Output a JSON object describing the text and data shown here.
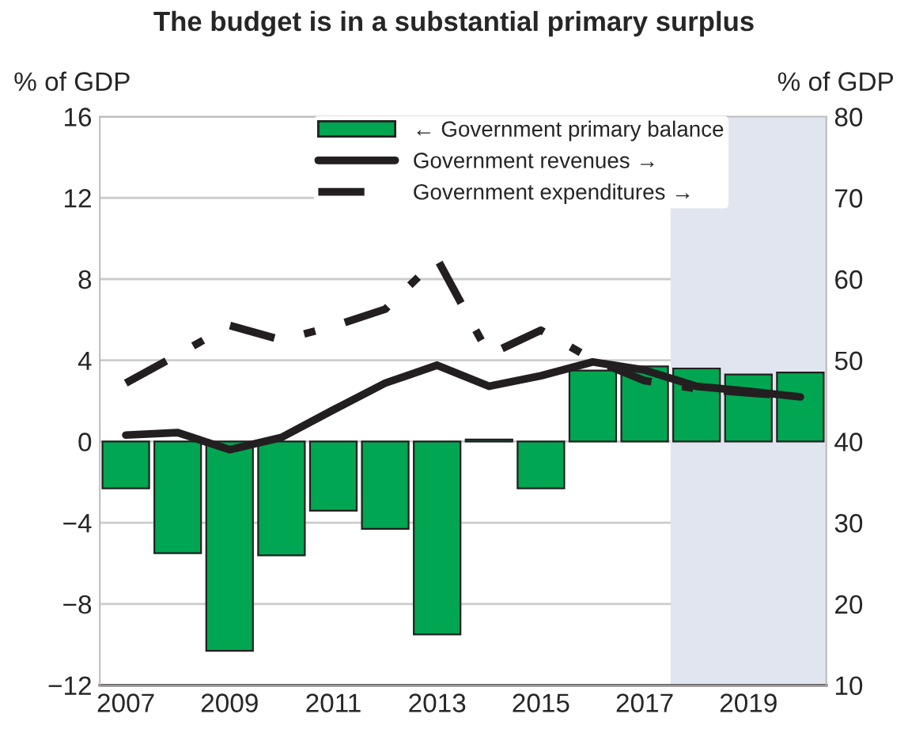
{
  "chart_data": {
    "type": "bar",
    "title": "The budget is in a substantial primary surplus",
    "ylabel": "% of GDP",
    "y2label": "% of GDP",
    "x": [
      2007,
      2008,
      2009,
      2010,
      2011,
      2012,
      2013,
      2014,
      2015,
      2016,
      2017,
      2018,
      2019,
      2020
    ],
    "series": [
      {
        "name": "← Government primary balance",
        "color": "#00a651",
        "values": [
          -2.3,
          -5.5,
          -10.3,
          -5.6,
          -3.4,
          -4.3,
          -9.5,
          0.1,
          -2.3,
          3.5,
          3.7,
          3.6,
          3.3,
          3.4
        ]
      },
      {
        "name": "Government revenues →",
        "color": "#231f20",
        "type": "line",
        "axis": "y2",
        "line_style": "solid",
        "values": [
          40.8,
          41.1,
          39.0,
          40.5,
          43.9,
          47.2,
          49.4,
          46.8,
          48.1,
          49.8,
          48.8,
          46.8,
          46.2,
          45.5
        ]
      },
      {
        "name": "Government expenditures →",
        "color": "#231f20",
        "type": "line",
        "axis": "y2",
        "line_style": "dashdot",
        "values": [
          47.2,
          50.7,
          54.3,
          52.5,
          54.2,
          56.3,
          62.5,
          50.7,
          53.7,
          50.1,
          47.5,
          46.5,
          46.0,
          45.5
        ]
      }
    ],
    "xlim": [
      2006.5,
      2020.5
    ],
    "xticks": [
      2007,
      2009,
      2011,
      2013,
      2015,
      2017,
      2019
    ],
    "ylim": [
      -12,
      16
    ],
    "yticks": [
      {
        "value": -12,
        "label": "−12"
      },
      {
        "value": -8,
        "label": "−8"
      },
      {
        "value": -4,
        "label": "−4"
      },
      0,
      4,
      8,
      12,
      16
    ],
    "y2lim": [
      10,
      80
    ],
    "y2ticks": [
      10,
      20,
      30,
      40,
      50,
      60,
      70,
      80
    ],
    "bands": [
      {
        "axis": "x",
        "from": 2017.5,
        "to": 2020.5,
        "color": "#e1e5ef"
      }
    ],
    "grid": "y",
    "legend": "top"
  }
}
